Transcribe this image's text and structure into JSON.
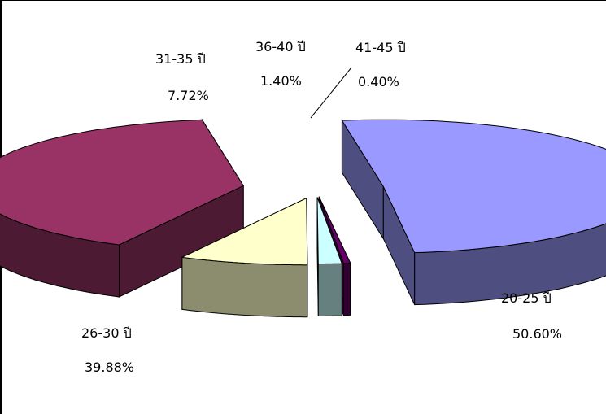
{
  "chart_data": {
    "type": "pie",
    "style": "3d-exploded",
    "legend": "none",
    "slices": [
      {
        "label": "20-25 ปี",
        "value": 50.6,
        "value_label": "50.60%",
        "top_color": "#9999ff",
        "side_color": "#4e4e80"
      },
      {
        "label": "26-30 ปี",
        "value": 39.88,
        "value_label": "39.88%",
        "top_color": "#993366",
        "side_color": "#4d1a33"
      },
      {
        "label": "31-35 ปี",
        "value": 7.72,
        "value_label": "7.72%",
        "top_color": "#ffffcc",
        "side_color": "#8c8c6e"
      },
      {
        "label": "36-40 ปี",
        "value": 1.4,
        "value_label": "1.40%",
        "top_color": "#ccffff",
        "side_color": "#668080"
      },
      {
        "label": "41-45 ปี",
        "value": 0.4,
        "value_label": "0.40%",
        "top_color": "#660066",
        "side_color": "#330033"
      }
    ]
  }
}
